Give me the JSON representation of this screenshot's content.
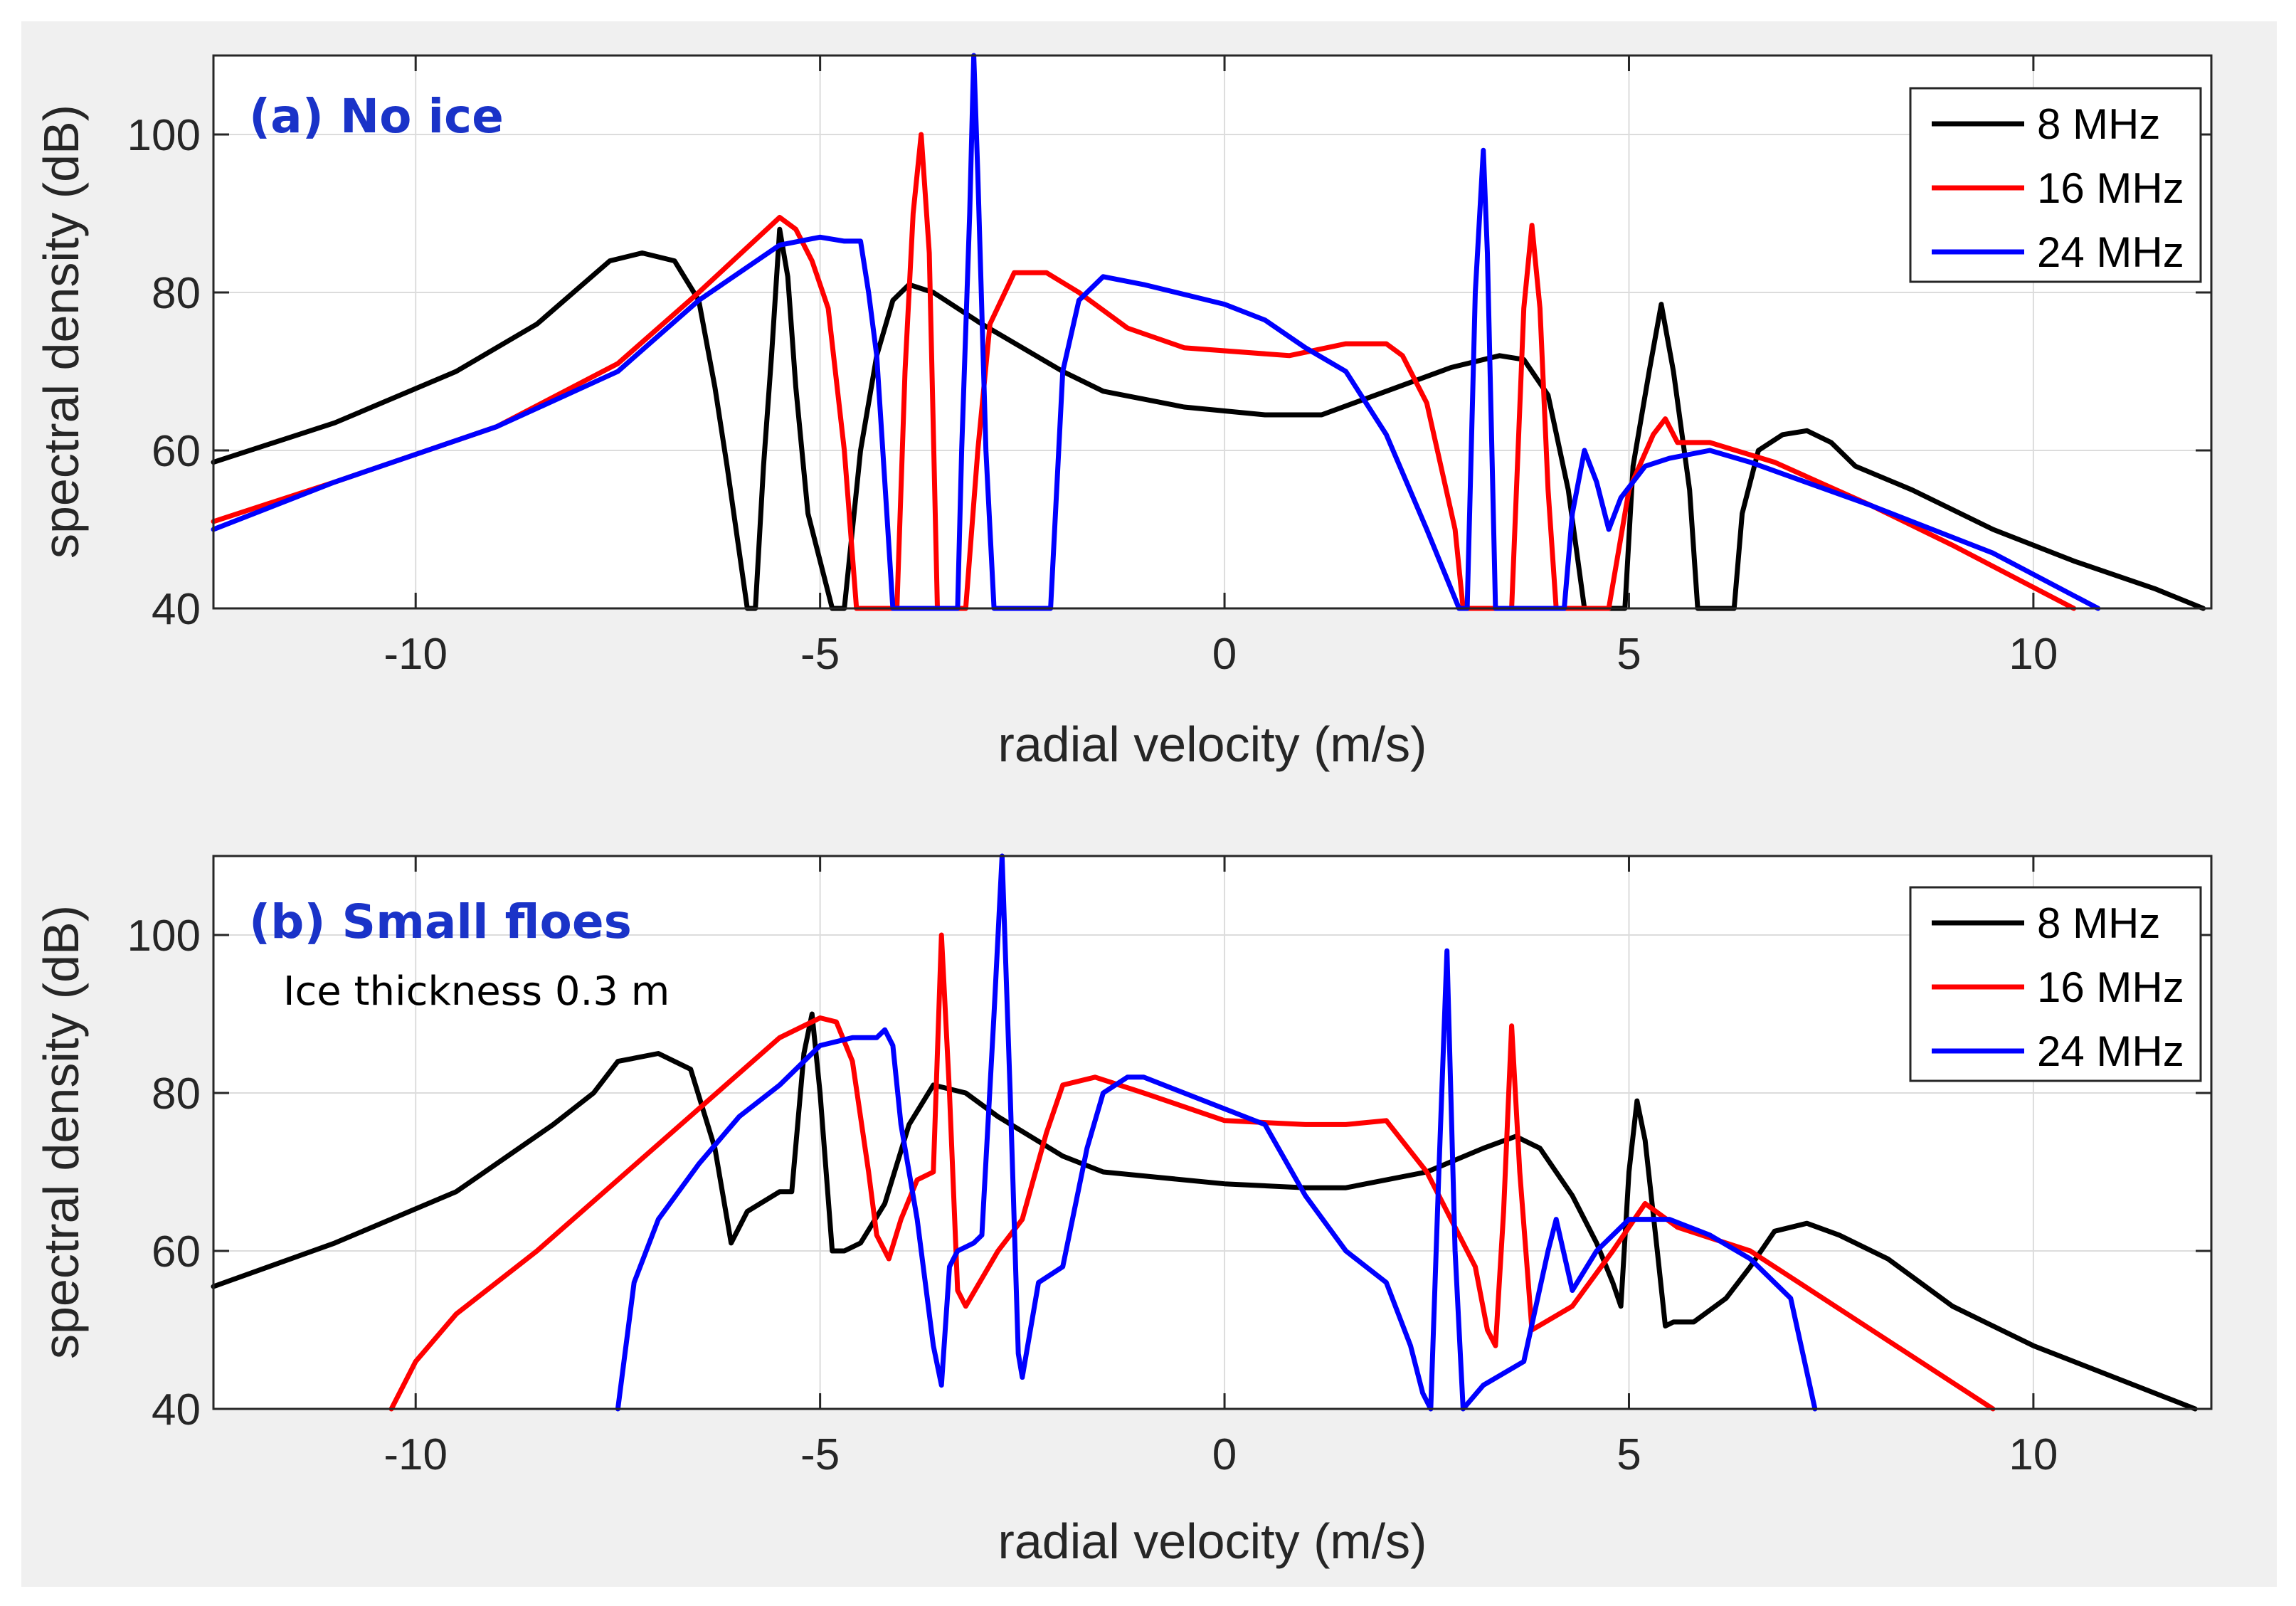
{
  "chart_data": [
    {
      "type": "line",
      "title": "(a) No ice",
      "title_color": "#1a33c8",
      "annotation": "",
      "xlabel": "radial velocity (m/s)",
      "ylabel": "spectral density (dB)",
      "xlim": [
        -12.5,
        12.2
      ],
      "ylim": [
        40,
        110
      ],
      "xticks": [
        -10,
        -5,
        0,
        5,
        10
      ],
      "xtick_labels": [
        "-10",
        "-5",
        "0",
        "5",
        "10"
      ],
      "yticks": [
        40,
        60,
        80,
        100
      ],
      "ytick_labels": [
        "40",
        "60",
        "80",
        "100"
      ],
      "grid": true,
      "legend_position": "top-right",
      "series": [
        {
          "name": "8 MHz",
          "color": "#000000",
          "x": [
            -12.5,
            -11,
            -9.5,
            -8.5,
            -7.6,
            -7.2,
            -6.8,
            -6.5,
            -6.3,
            -6.15,
            -5.9,
            -5.8,
            -5.7,
            -5.6,
            -5.5,
            -5.4,
            -5.3,
            -5.15,
            -4.85,
            -4.7,
            -4.5,
            -4.3,
            -4.1,
            -3.9,
            -3.6,
            -3,
            -2,
            -1.5,
            -0.5,
            0.5,
            1.2,
            2,
            2.8,
            3.4,
            3.7,
            4,
            4.25,
            4.45,
            4.55,
            4.95,
            5.05,
            5.25,
            5.4,
            5.55,
            5.75,
            5.85,
            6.3,
            6.4,
            6.6,
            6.9,
            7.2,
            7.5,
            7.8,
            8.5,
            9.5,
            10.5,
            11.5,
            12.1
          ],
          "y": [
            58.5,
            63.5,
            70,
            76,
            84,
            85,
            84,
            79,
            68,
            58,
            40,
            40,
            58,
            72,
            88,
            82,
            68,
            52,
            40,
            40,
            60,
            72,
            79,
            81,
            80,
            76,
            70,
            67.5,
            65.5,
            64.5,
            64.5,
            67.5,
            70.5,
            72,
            71.5,
            67,
            55,
            40,
            40,
            40,
            58,
            70,
            78.5,
            70,
            55,
            40,
            40,
            52,
            60,
            62,
            62.5,
            61,
            58,
            55,
            50,
            46,
            42.5,
            40
          ]
        },
        {
          "name": "16 MHz",
          "color": "#ff0000",
          "x": [
            -12.5,
            -11,
            -9,
            -7.5,
            -6.5,
            -5.5,
            -5.3,
            -5.1,
            -4.9,
            -4.7,
            -4.55,
            -4.45,
            -4.05,
            -3.95,
            -3.85,
            -3.75,
            -3.65,
            -3.55,
            -3.3,
            -3.2,
            -3.05,
            -2.9,
            -2.6,
            -2.2,
            -1.8,
            -1.2,
            -0.5,
            0.8,
            1.5,
            2,
            2.2,
            2.5,
            2.85,
            2.95,
            3.45,
            3.55,
            3.7,
            3.8,
            3.9,
            4,
            4.1,
            4.65,
            4.75,
            5,
            5.3,
            5.45,
            5.6,
            6,
            6.8,
            8,
            9,
            10.5
          ],
          "y": [
            51,
            56,
            63,
            71,
            80,
            89.5,
            88,
            84,
            78,
            60,
            40,
            40,
            40,
            70,
            90,
            100,
            85,
            40,
            40,
            40,
            60,
            76,
            82.5,
            82.5,
            80,
            75.5,
            73,
            72,
            73.5,
            73.5,
            72,
            66,
            50,
            40,
            40,
            40,
            78,
            88.5,
            78,
            55,
            40,
            40,
            40,
            55,
            62,
            64,
            61,
            61,
            58.5,
            53,
            48,
            40
          ]
        },
        {
          "name": "24 MHz",
          "color": "#0000ff",
          "x": [
            -12.5,
            -11,
            -9,
            -7.5,
            -6.5,
            -5.5,
            -5,
            -4.7,
            -4.5,
            -4.4,
            -4.3,
            -4.2,
            -4.1,
            -4.05,
            -3.3,
            -3.25,
            -3.15,
            -3.1,
            -3.05,
            -2.95,
            -2.85,
            -2.15,
            -2.1,
            -2,
            -1.8,
            -1.5,
            -1,
            0,
            0.5,
            1,
            1.5,
            2,
            2.5,
            2.9,
            3,
            3.1,
            3.2,
            3.25,
            3.35,
            4.2,
            4.3,
            4.45,
            4.6,
            4.75,
            4.9,
            5.2,
            5.5,
            6,
            6.5,
            8,
            9.5,
            10.8
          ],
          "y": [
            50,
            56,
            63,
            70,
            79,
            86,
            87,
            86.5,
            86.5,
            80,
            72,
            56,
            40,
            40,
            40,
            60,
            90,
            110,
            95,
            60,
            40,
            40,
            50,
            70,
            79,
            82,
            81,
            78.5,
            76.5,
            73,
            70,
            62,
            50,
            40,
            40,
            80,
            98,
            85,
            40,
            40,
            52,
            60,
            56,
            50,
            54,
            58,
            59,
            60,
            58.5,
            53,
            47,
            40
          ]
        }
      ]
    },
    {
      "type": "line",
      "title": "(b) Small floes",
      "title_color": "#1a33c8",
      "annotation": "Ice thickness 0.3 m",
      "xlabel": "radial velocity (m/s)",
      "ylabel": "spectral density (dB)",
      "xlim": [
        -12.5,
        12.2
      ],
      "ylim": [
        40,
        110
      ],
      "xticks": [
        -10,
        -5,
        0,
        5,
        10
      ],
      "xtick_labels": [
        "-10",
        "-5",
        "0",
        "5",
        "10"
      ],
      "yticks": [
        40,
        60,
        80,
        100
      ],
      "ytick_labels": [
        "40",
        "60",
        "80",
        "100"
      ],
      "grid": true,
      "legend_position": "top-right",
      "series": [
        {
          "name": "8 MHz",
          "color": "#000000",
          "x": [
            -12.5,
            -11,
            -9.5,
            -8.3,
            -7.8,
            -7.5,
            -7,
            -6.6,
            -6.3,
            -6.1,
            -5.9,
            -5.5,
            -5.35,
            -5.2,
            -5.1,
            -5,
            -4.85,
            -4.7,
            -4.5,
            -4.2,
            -3.9,
            -3.6,
            -3.2,
            -2.8,
            -2,
            -1.5,
            0,
            1,
            1.5,
            2.5,
            3.2,
            3.6,
            3.9,
            4.3,
            4.6,
            4.8,
            4.9,
            5,
            5.1,
            5.2,
            5.35,
            5.45,
            5.55,
            5.8,
            6.2,
            6.5,
            6.8,
            7.2,
            7.6,
            8.2,
            9,
            10,
            11,
            12
          ],
          "y": [
            55.5,
            61,
            67.5,
            76,
            80,
            84,
            85,
            83,
            73,
            61,
            65,
            67.5,
            67.5,
            85,
            90,
            80,
            60,
            60,
            61,
            66,
            76,
            81,
            80,
            77,
            72,
            70,
            68.5,
            68,
            68,
            70,
            73,
            74.5,
            73,
            67,
            61,
            56,
            53,
            70,
            79,
            74,
            60,
            50.5,
            51,
            51,
            54,
            58,
            62.5,
            63.5,
            62,
            59,
            53,
            48,
            44,
            40
          ]
        },
        {
          "name": "16 MHz",
          "color": "#ff0000",
          "x": [
            -10.3,
            -10,
            -9.5,
            -8.5,
            -7.5,
            -6.5,
            -5.5,
            -5,
            -4.8,
            -4.6,
            -4.4,
            -4.3,
            -4.15,
            -4,
            -3.8,
            -3.6,
            -3.5,
            -3.4,
            -3.3,
            -3.2,
            -2.8,
            -2.5,
            -2.2,
            -2,
            -1.6,
            -1,
            0,
            1,
            1.5,
            2,
            2.5,
            3.1,
            3.25,
            3.35,
            3.45,
            3.55,
            3.65,
            3.8,
            4.3,
            4.8,
            5.2,
            5.6,
            6.5,
            8,
            9.5
          ],
          "y": [
            40,
            46,
            52,
            60,
            69,
            78,
            87,
            89.5,
            89,
            84,
            70,
            62,
            59,
            64,
            69,
            70,
            100,
            80,
            55,
            53,
            60,
            64,
            75,
            81,
            82,
            80,
            76.5,
            76,
            76,
            76.5,
            70,
            58,
            50,
            48,
            65,
            88.5,
            70,
            50,
            53,
            60,
            66,
            63,
            60,
            50,
            40
          ]
        },
        {
          "name": "24 MHz",
          "color": "#0000ff",
          "x": [
            -7.5,
            -7.3,
            -7,
            -6.5,
            -6,
            -5.5,
            -5,
            -4.6,
            -4.3,
            -4.2,
            -4.1,
            -4,
            -3.8,
            -3.6,
            -3.5,
            -3.4,
            -3.3,
            -3.1,
            -3,
            -2.85,
            -2.75,
            -2.65,
            -2.55,
            -2.5,
            -2.3,
            -2,
            -1.7,
            -1.5,
            -1.2,
            -1,
            -0.5,
            0,
            0.5,
            1,
            1.5,
            2,
            2.3,
            2.45,
            2.55,
            2.65,
            2.75,
            2.85,
            2.95,
            3.2,
            3.7,
            4,
            4.1,
            4.3,
            4.6,
            5,
            5.5,
            6,
            6.5,
            7,
            7.3
          ],
          "y": [
            40,
            56,
            64,
            71,
            77,
            81,
            86,
            87,
            87,
            88,
            86,
            76,
            64,
            48,
            43,
            58,
            60,
            61,
            62,
            90,
            110,
            80,
            47,
            44,
            56,
            58,
            73,
            80,
            82,
            82,
            80,
            78,
            76,
            67,
            60,
            56,
            48,
            42,
            40,
            70,
            98,
            60,
            40,
            43,
            46,
            60,
            64,
            55,
            60,
            64,
            64,
            62,
            59,
            54,
            40
          ]
        }
      ]
    }
  ]
}
